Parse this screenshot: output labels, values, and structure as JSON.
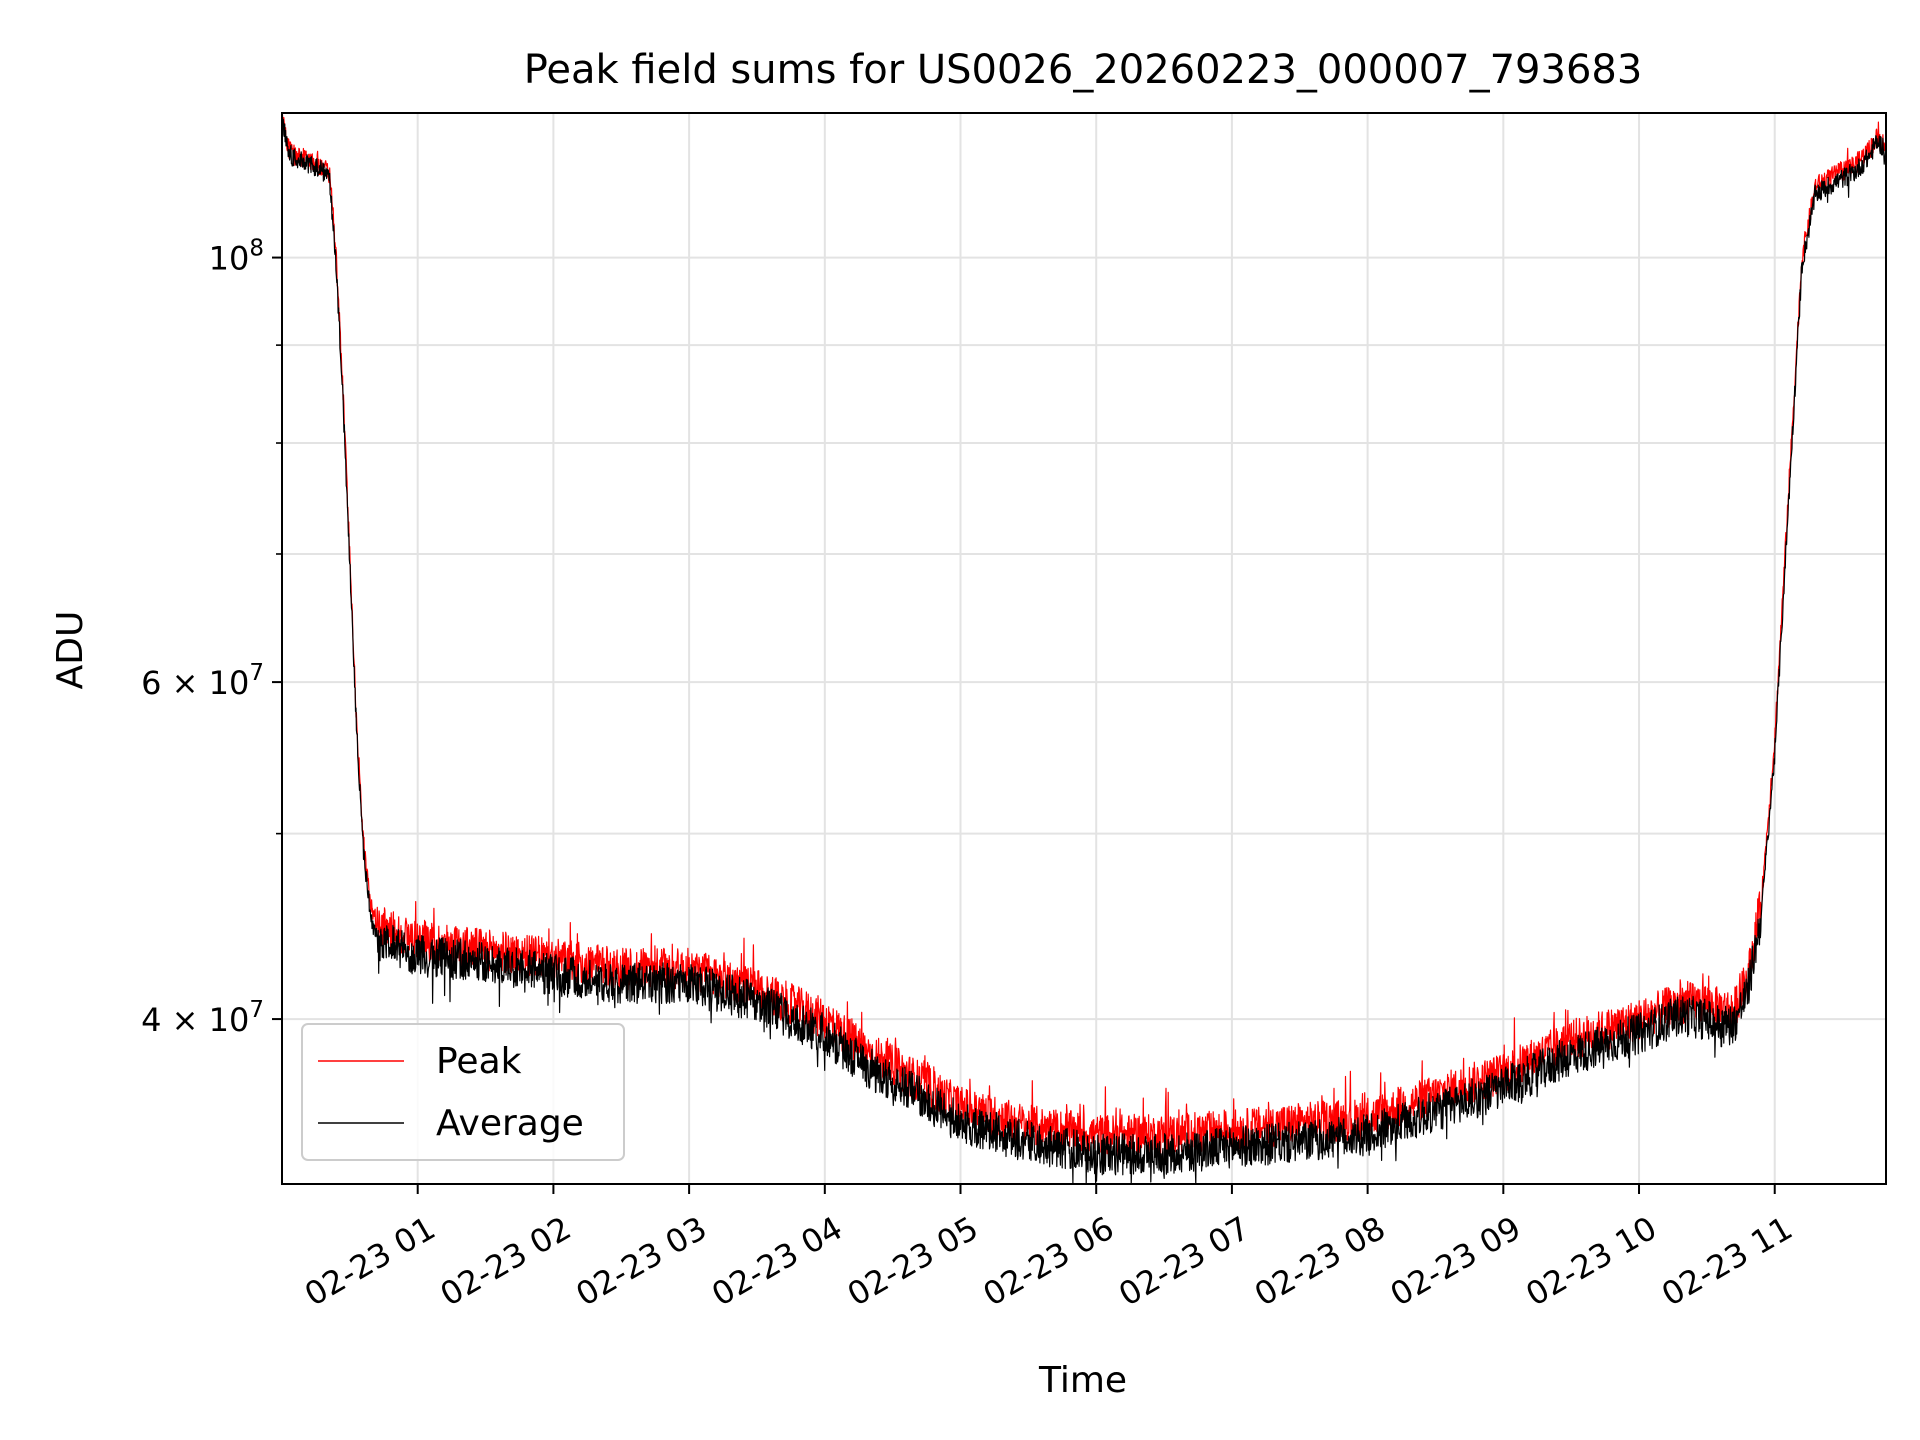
{
  "chart_data": {
    "type": "line",
    "title": "Peak field sums for US0026_20260223_000007_793683",
    "xlabel": "Time",
    "ylabel": "ADU",
    "yscale": "log",
    "grid": true,
    "legend_position": "lower-left",
    "x_unit": "hours since 02-23 00:00",
    "xlim": [
      0.0,
      11.82
    ],
    "ylim": [
      32800000,
      119000000
    ],
    "x_ticks": [
      {
        "value": 1,
        "label": "02-23 01"
      },
      {
        "value": 2,
        "label": "02-23 02"
      },
      {
        "value": 3,
        "label": "02-23 03"
      },
      {
        "value": 4,
        "label": "02-23 04"
      },
      {
        "value": 5,
        "label": "02-23 05"
      },
      {
        "value": 6,
        "label": "02-23 06"
      },
      {
        "value": 7,
        "label": "02-23 07"
      },
      {
        "value": 8,
        "label": "02-23 08"
      },
      {
        "value": 9,
        "label": "02-23 09"
      },
      {
        "value": 10,
        "label": "02-23 10"
      },
      {
        "value": 11,
        "label": "02-23 11"
      }
    ],
    "y_major_ticks": [
      {
        "value": 100000000,
        "base": "10",
        "exp": "8",
        "label": "10^8"
      },
      {
        "value": 60000000,
        "base": "6 × 10",
        "exp": "7",
        "label": "6×10^7"
      },
      {
        "value": 40000000,
        "base": "4 × 10",
        "exp": "7",
        "label": "4×10^7"
      }
    ],
    "y_minor_ticks": [
      90000000,
      80000000,
      70000000,
      50000000
    ],
    "series": [
      {
        "name": "Peak",
        "color": "#ff0000",
        "x": [
          0.0,
          0.05,
          0.1,
          0.2,
          0.3,
          0.35,
          0.4,
          0.45,
          0.5,
          0.55,
          0.6,
          0.65,
          0.7,
          0.8,
          1.0,
          1.5,
          2.0,
          2.5,
          3.0,
          3.5,
          4.0,
          4.3,
          4.6,
          5.0,
          5.5,
          6.0,
          6.5,
          7.0,
          7.5,
          8.0,
          8.5,
          9.0,
          9.5,
          10.0,
          10.3,
          10.5,
          10.6,
          10.7,
          10.8,
          10.9,
          11.0,
          11.1,
          11.2,
          11.3,
          11.4,
          11.5,
          11.6,
          11.7,
          11.75,
          11.82
        ],
        "values": [
          118500000,
          114000000,
          113000000,
          112500000,
          111500000,
          110500000,
          100000000,
          85000000,
          70000000,
          57000000,
          49500000,
          46000000,
          44800000,
          44500000,
          44000000,
          43500000,
          43000000,
          42500000,
          42500000,
          41500000,
          40000000,
          38500000,
          37500000,
          36000000,
          35200000,
          34800000,
          34800000,
          35000000,
          35300000,
          35500000,
          36500000,
          37500000,
          39000000,
          40000000,
          40800000,
          40800000,
          40500000,
          40500000,
          42000000,
          46000000,
          56000000,
          75000000,
          100000000,
          109000000,
          110000000,
          111000000,
          112000000,
          114000000,
          115500000,
          114500000
        ]
      },
      {
        "name": "Average",
        "color": "#000000",
        "x": [
          0.0,
          0.05,
          0.1,
          0.2,
          0.3,
          0.35,
          0.4,
          0.45,
          0.5,
          0.55,
          0.6,
          0.65,
          0.7,
          0.8,
          1.0,
          1.5,
          2.0,
          2.5,
          3.0,
          3.5,
          4.0,
          4.3,
          4.6,
          5.0,
          5.5,
          6.0,
          6.5,
          7.0,
          7.5,
          8.0,
          8.5,
          9.0,
          9.5,
          10.0,
          10.3,
          10.5,
          10.6,
          10.7,
          10.8,
          10.9,
          11.0,
          11.1,
          11.2,
          11.3,
          11.4,
          11.5,
          11.6,
          11.7,
          11.75,
          11.82
        ],
        "values": [
          118000000,
          113500000,
          112500000,
          112000000,
          111000000,
          110000000,
          99000000,
          84000000,
          69000000,
          56500000,
          49000000,
          45500000,
          44000000,
          43800000,
          43200000,
          42800000,
          42200000,
          41800000,
          41800000,
          40800000,
          39300000,
          37800000,
          36800000,
          35300000,
          34500000,
          34000000,
          34000000,
          34300000,
          34500000,
          34800000,
          35800000,
          36800000,
          38300000,
          39300000,
          40200000,
          40000000,
          39700000,
          39800000,
          41300000,
          45300000,
          55000000,
          74000000,
          99000000,
          108000000,
          109000000,
          110000000,
          111000000,
          113000000,
          115000000,
          114000000
        ]
      }
    ]
  }
}
